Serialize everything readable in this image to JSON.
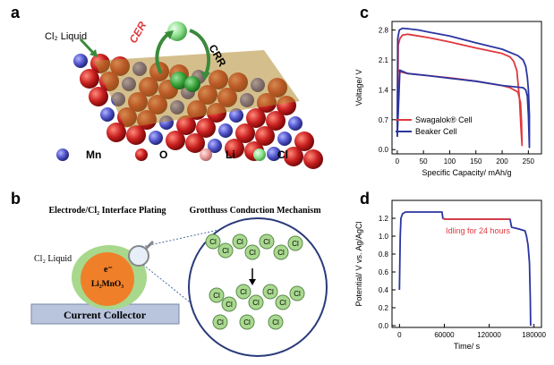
{
  "panels": {
    "a": "a",
    "b": "b",
    "c": "c",
    "d": "d"
  },
  "panel_a": {
    "cl2_liquid": "Cl₂ Liquid",
    "cer": "CER",
    "crr": "CRR",
    "legend": [
      {
        "label": "Mn",
        "color": "#4f52c8"
      },
      {
        "label": "O",
        "color": "#b41c1c"
      },
      {
        "label": "Li",
        "color": "#e89a9a"
      },
      {
        "label": "Cl",
        "color": "#8fe08f"
      }
    ]
  },
  "panel_b": {
    "title_left": "Electrode/Cl₂ Interface Plating",
    "title_right": "Grotthuss Conduction Mechanism",
    "cl2_liquid": "Cl₂ Liquid",
    "electron": "e⁻",
    "particle": "Li₂MnO₃",
    "collector": "Current Collector",
    "cl_atom": "Cl"
  },
  "chart_data": [
    {
      "type": "line",
      "panel": "c",
      "xlabel": "Specific Capacity/ mAh/g",
      "ylabel": "Voltage/ V",
      "xlim": [
        -10,
        275
      ],
      "ylim": [
        -0.1,
        3.0
      ],
      "xticks": [
        0,
        50,
        100,
        150,
        200,
        250
      ],
      "yticks": [
        0.0,
        0.7,
        1.4,
        2.1,
        2.8
      ],
      "legend_position": "bottom-left",
      "series": [
        {
          "name": "Swagalok® Cell",
          "color": "#e0383d",
          "x": [
            0,
            2,
            5,
            10,
            20,
            40,
            60,
            100,
            150,
            200,
            215,
            222,
            228,
            233,
            236,
            238,
            237,
            235,
            230,
            215,
            200,
            150,
            100,
            60,
            20,
            5,
            1,
            0
          ],
          "y": [
            0.3,
            2.45,
            2.6,
            2.68,
            2.7,
            2.66,
            2.62,
            2.52,
            2.38,
            2.25,
            2.17,
            2.07,
            1.85,
            1.2,
            0.5,
            0.1,
            0.65,
            1.1,
            1.35,
            1.45,
            1.5,
            1.6,
            1.68,
            1.73,
            1.78,
            1.82,
            1.88,
            0.3
          ]
        },
        {
          "name": "Beaker Cell",
          "color": "#2a35a0",
          "x": [
            0,
            1,
            4,
            10,
            20,
            40,
            60,
            100,
            150,
            200,
            230,
            240,
            245,
            248,
            250,
            252,
            252,
            250,
            248,
            245,
            240,
            200,
            150,
            100,
            60,
            20,
            5,
            0
          ],
          "y": [
            0.3,
            2.6,
            2.8,
            2.84,
            2.83,
            2.8,
            2.75,
            2.66,
            2.5,
            2.35,
            2.2,
            2.1,
            1.95,
            1.7,
            1.4,
            0.8,
            0.05,
            0.8,
            1.25,
            1.4,
            1.45,
            1.5,
            1.6,
            1.67,
            1.73,
            1.78,
            1.86,
            0.3
          ]
        }
      ]
    },
    {
      "type": "line",
      "panel": "d",
      "xlabel": "Time/ s",
      "ylabel": "Potential/ V vs. Ag/AgCl",
      "xlim": [
        -10000,
        190000
      ],
      "ylim": [
        -0.02,
        1.4
      ],
      "xticks": [
        0,
        60000,
        120000,
        180000
      ],
      "yticks": [
        0.0,
        0.2,
        0.4,
        0.6,
        0.8,
        1.0,
        1.2
      ],
      "annotation": "Idling for 24 hours",
      "series": [
        {
          "name": "",
          "color": "#2a35a0",
          "x": [
            0,
            1000,
            2000,
            4000,
            8000,
            20000,
            40000,
            57000,
            58000,
            62000,
            100000,
            148000,
            150000,
            160000,
            168000,
            170000,
            172000,
            174000,
            175000,
            175500
          ],
          "y": [
            0.4,
            1.0,
            1.2,
            1.25,
            1.27,
            1.27,
            1.27,
            1.27,
            1.2,
            1.19,
            1.19,
            1.19,
            1.1,
            1.08,
            1.06,
            1.0,
            0.9,
            0.7,
            0.3,
            0.0
          ]
        },
        {
          "name": "",
          "color": "#e0383d",
          "x": [
            58000,
            60000,
            80000,
            100000,
            120000,
            140000,
            148000
          ],
          "y": [
            1.2,
            1.19,
            1.19,
            1.19,
            1.19,
            1.19,
            1.19
          ]
        }
      ]
    }
  ]
}
